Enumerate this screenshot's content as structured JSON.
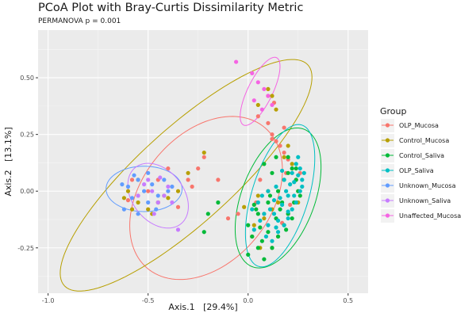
{
  "chart_data": {
    "type": "scatter",
    "title": "PCoA Plot with Bray-Curtis Dissimilarity Metric",
    "subtitle": "PERMANOVA p = 0.001",
    "xlabel": "Axis.1   [29.4%]",
    "ylabel": "Axis.2   [13.1%]",
    "xlim": [
      -1.05,
      0.6
    ],
    "ylim": [
      -0.45,
      0.71
    ],
    "x_ticks": [
      -1.0,
      -0.5,
      0.0,
      0.5
    ],
    "x_tick_labels": [
      "-1.0",
      "-0.5",
      "0.0",
      "0.5"
    ],
    "y_ticks": [
      -0.25,
      0.0,
      0.25,
      0.5
    ],
    "y_tick_labels": [
      "-0.25",
      "0.00",
      "0.25",
      "0.50"
    ],
    "grid": true,
    "legend": {
      "title": "Group",
      "placement": "right"
    },
    "series": [
      {
        "name": "OLP_Mucosa",
        "color": "#F8766D",
        "ellipse": {
          "cx": -0.21,
          "cy": -0.03,
          "rx": 0.43,
          "ry": 0.3,
          "angle": 40
        },
        "points": [
          [
            0.05,
            0.33
          ],
          [
            0.1,
            0.3
          ],
          [
            0.12,
            0.25
          ],
          [
            0.14,
            0.22
          ],
          [
            0.16,
            0.2
          ],
          [
            0.18,
            0.17
          ],
          [
            0.2,
            0.14
          ],
          [
            0.22,
            0.1
          ],
          [
            0.24,
            0.05
          ],
          [
            0.25,
            0.0
          ],
          [
            0.23,
            -0.05
          ],
          [
            0.2,
            -0.1
          ],
          [
            0.17,
            -0.14
          ],
          [
            0.15,
            -0.2
          ],
          [
            0.12,
            -0.25
          ],
          [
            0.08,
            -0.1
          ],
          [
            0.06,
            0.05
          ],
          [
            0.04,
            -0.05
          ],
          [
            -0.05,
            -0.1
          ],
          [
            -0.1,
            -0.12
          ],
          [
            -0.3,
            0.05
          ],
          [
            -0.28,
            0.02
          ],
          [
            -0.4,
            0.1
          ],
          [
            -0.45,
            0.05
          ],
          [
            -0.5,
            0.0
          ],
          [
            -0.55,
            -0.02
          ],
          [
            -0.6,
            -0.04
          ],
          [
            -0.58,
            0.05
          ],
          [
            -0.45,
            -0.05
          ],
          [
            -0.35,
            -0.07
          ],
          [
            -0.25,
            0.1
          ],
          [
            -0.15,
            0.05
          ],
          [
            -0.22,
            0.15
          ],
          [
            0.18,
            0.28
          ],
          [
            0.1,
            0.42
          ],
          [
            0.13,
            0.39
          ],
          [
            0.12,
            0.23
          ],
          [
            0.21,
            -0.06
          ],
          [
            0.19,
            0.08
          ],
          [
            0.26,
            0.08
          ]
        ]
      },
      {
        "name": "Control_Mucosa",
        "color": "#B79F00",
        "ellipse": {
          "cx": -0.31,
          "cy": 0.07,
          "rx": 0.78,
          "ry": 0.22,
          "angle": 38
        },
        "points": [
          [
            -0.22,
            0.17
          ],
          [
            -0.3,
            0.08
          ],
          [
            -0.55,
            -0.05
          ],
          [
            -0.5,
            -0.08
          ],
          [
            -0.45,
            -0.05
          ],
          [
            -0.4,
            -0.03
          ],
          [
            -0.35,
            0.0
          ],
          [
            -0.6,
            0.0
          ],
          [
            -0.62,
            -0.03
          ],
          [
            -0.48,
            -0.1
          ],
          [
            0.05,
            -0.02
          ],
          [
            0.08,
            -0.12
          ],
          [
            0.12,
            -0.08
          ],
          [
            0.15,
            -0.05
          ],
          [
            0.1,
            0.0
          ],
          [
            0.02,
            -0.2
          ],
          [
            0.06,
            -0.25
          ],
          [
            0.1,
            0.45
          ],
          [
            0.12,
            0.42
          ],
          [
            0.18,
            0.15
          ],
          [
            0.2,
            0.2
          ],
          [
            0.25,
            -0.05
          ],
          [
            -0.55,
            0.05
          ],
          [
            -0.58,
            -0.08
          ],
          [
            -0.42,
            -0.02
          ],
          [
            0.05,
            0.38
          ],
          [
            0.03,
            -0.15
          ],
          [
            -0.02,
            -0.07
          ],
          [
            0.14,
            0.36
          ],
          [
            0.22,
            0.12
          ]
        ]
      },
      {
        "name": "Control_Saliva",
        "color": "#00BA38",
        "ellipse": {
          "cx": 0.15,
          "cy": -0.03,
          "rx": 0.33,
          "ry": 0.18,
          "angle": 65
        },
        "points": [
          [
            0.2,
            0.15
          ],
          [
            0.22,
            0.1
          ],
          [
            0.24,
            0.05
          ],
          [
            0.25,
            0.0
          ],
          [
            0.23,
            -0.05
          ],
          [
            0.2,
            -0.1
          ],
          [
            0.18,
            -0.15
          ],
          [
            0.15,
            -0.2
          ],
          [
            0.12,
            -0.25
          ],
          [
            0.08,
            -0.3
          ],
          [
            0.05,
            -0.25
          ],
          [
            0.02,
            -0.2
          ],
          [
            0.0,
            -0.15
          ],
          [
            0.05,
            -0.1
          ],
          [
            0.1,
            -0.05
          ],
          [
            0.15,
            0.0
          ],
          [
            0.18,
            0.05
          ],
          [
            0.2,
            0.08
          ],
          [
            0.26,
            -0.02
          ],
          [
            0.22,
            -0.12
          ],
          [
            0.17,
            -0.05
          ],
          [
            0.14,
            -0.12
          ],
          [
            0.1,
            -0.18
          ],
          [
            0.06,
            -0.16
          ],
          [
            0.04,
            -0.08
          ],
          [
            -0.15,
            -0.05
          ],
          [
            -0.2,
            -0.1
          ],
          [
            -0.22,
            -0.18
          ],
          [
            0.08,
            0.12
          ],
          [
            0.12,
            0.08
          ],
          [
            0.0,
            -0.28
          ],
          [
            0.03,
            -0.06
          ],
          [
            0.14,
            0.15
          ],
          [
            0.07,
            -0.22
          ],
          [
            0.11,
            -0.02
          ],
          [
            0.19,
            -0.17
          ],
          [
            0.24,
            0.1
          ],
          [
            0.16,
            -0.08
          ]
        ]
      },
      {
        "name": "OLP_Saliva",
        "color": "#00BFC4",
        "ellipse": {
          "cx": 0.16,
          "cy": -0.02,
          "rx": 0.33,
          "ry": 0.14,
          "angle": 70
        },
        "points": [
          [
            0.25,
            0.15
          ],
          [
            0.26,
            0.1
          ],
          [
            0.27,
            0.05
          ],
          [
            0.26,
            0.0
          ],
          [
            0.24,
            -0.05
          ],
          [
            0.22,
            -0.08
          ],
          [
            0.2,
            -0.12
          ],
          [
            0.18,
            -0.15
          ],
          [
            0.15,
            -0.18
          ],
          [
            0.12,
            -0.22
          ],
          [
            0.1,
            -0.15
          ],
          [
            0.08,
            -0.1
          ],
          [
            0.05,
            -0.05
          ],
          [
            0.1,
            0.0
          ],
          [
            0.14,
            0.02
          ],
          [
            0.18,
            0.05
          ],
          [
            0.22,
            0.08
          ],
          [
            0.24,
            0.12
          ],
          [
            0.2,
            -0.02
          ],
          [
            0.17,
            -0.06
          ],
          [
            0.13,
            -0.1
          ],
          [
            0.27,
            0.02
          ],
          [
            0.23,
            0.04
          ],
          [
            0.19,
            0.0
          ],
          [
            0.16,
            -0.03
          ],
          [
            0.21,
            0.03
          ],
          [
            0.11,
            -0.08
          ],
          [
            0.15,
            -0.13
          ],
          [
            0.09,
            -0.2
          ],
          [
            0.06,
            -0.13
          ],
          [
            0.02,
            -0.08
          ],
          [
            0.25,
            0.07
          ],
          [
            0.13,
            -0.04
          ],
          [
            0.17,
            0.09
          ],
          [
            0.07,
            -0.02
          ],
          [
            0.2,
            -0.09
          ],
          [
            0.03,
            -0.17
          ],
          [
            0.28,
            0.08
          ],
          [
            0.23,
            -0.02
          ],
          [
            0.14,
            -0.16
          ]
        ]
      },
      {
        "name": "Unknown_Mucosa",
        "color": "#619CFF",
        "ellipse": {
          "cx": -0.52,
          "cy": 0.01,
          "rx": 0.19,
          "ry": 0.1,
          "angle": 0
        },
        "points": [
          [
            -0.6,
            0.02
          ],
          [
            -0.58,
            -0.03
          ],
          [
            -0.55,
            0.05
          ],
          [
            -0.52,
            0.0
          ],
          [
            -0.5,
            -0.05
          ],
          [
            -0.48,
            0.03
          ],
          [
            -0.45,
            -0.02
          ],
          [
            -0.42,
            0.05
          ],
          [
            -0.4,
            0.0
          ],
          [
            -0.62,
            -0.08
          ],
          [
            -0.55,
            -0.1
          ],
          [
            -0.5,
            0.08
          ],
          [
            -0.38,
            0.02
          ],
          [
            -0.63,
            0.03
          ],
          [
            -0.57,
            0.07
          ],
          [
            -0.46,
            -0.08
          ]
        ]
      },
      {
        "name": "Unknown_Saliva",
        "color": "#C77CFF",
        "ellipse": {
          "cx": -0.45,
          "cy": -0.02,
          "rx": 0.17,
          "ry": 0.12,
          "angle": -40
        },
        "points": [
          [
            -0.5,
            0.05
          ],
          [
            -0.48,
            0.0
          ],
          [
            -0.45,
            -0.05
          ],
          [
            -0.42,
            -0.02
          ],
          [
            -0.4,
            0.02
          ],
          [
            -0.38,
            -0.05
          ],
          [
            -0.35,
            -0.17
          ],
          [
            -0.55,
            -0.02
          ],
          [
            -0.52,
            0.03
          ],
          [
            -0.47,
            -0.1
          ],
          [
            -0.44,
            0.06
          ]
        ]
      },
      {
        "name": "Unaffected_Mucosa",
        "color": "#F564E3",
        "ellipse": {
          "cx": 0.06,
          "cy": 0.44,
          "rx": 0.17,
          "ry": 0.06,
          "angle": 60
        },
        "points": [
          [
            -0.06,
            0.57
          ],
          [
            0.02,
            0.52
          ],
          [
            0.05,
            0.48
          ],
          [
            0.08,
            0.45
          ],
          [
            0.1,
            0.42
          ],
          [
            0.12,
            0.38
          ],
          [
            0.03,
            0.4
          ],
          [
            0.07,
            0.36
          ]
        ]
      }
    ]
  }
}
